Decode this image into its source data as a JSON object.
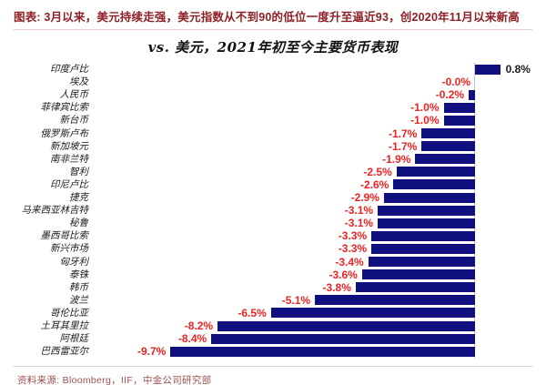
{
  "header": {
    "title": "图表: 3月以来，美元持续走强，美元指数从不到90的低位一度升至逼近93，创2020年11月以来新高",
    "accent_color": "#8E1F24"
  },
  "chart_data": {
    "type": "bar",
    "orientation": "horizontal",
    "title": "vs. 美元，2021年初至今主要货币表现",
    "categories": [
      "印度卢比",
      "埃及",
      "人民币",
      "菲律宾比索",
      "新台币",
      "俄罗斯卢布",
      "新加坡元",
      "南非兰特",
      "智利",
      "印尼卢比",
      "捷克",
      "马来西亚林吉特",
      "秘鲁",
      "墨西哥比索",
      "新兴市场",
      "匈牙利",
      "泰铢",
      "韩币",
      "波兰",
      "哥伦比亚",
      "土耳其里拉",
      "阿根廷",
      "巴西雷亚尔"
    ],
    "values": [
      0.8,
      -0.0,
      -0.2,
      -1.0,
      -1.0,
      -1.7,
      -1.7,
      -1.9,
      -2.5,
      -2.6,
      -2.9,
      -3.1,
      -3.1,
      -3.3,
      -3.3,
      -3.4,
      -3.6,
      -3.8,
      -5.1,
      -6.5,
      -8.2,
      -8.4,
      -9.7
    ],
    "value_labels": [
      "0.8%",
      "-0.0%",
      "-0.2%",
      "-1.0%",
      "-1.0%",
      "-1.7%",
      "-1.7%",
      "-1.9%",
      "-2.5%",
      "-2.6%",
      "-2.9%",
      "-3.1%",
      "-3.1%",
      "-3.3%",
      "-3.3%",
      "-3.4%",
      "-3.6%",
      "-3.8%",
      "-5.1%",
      "-6.5%",
      "-8.2%",
      "-8.4%",
      "-9.7%"
    ],
    "unit": "%",
    "xlim": [
      -10.5,
      2.3
    ],
    "grid": false,
    "legend": false,
    "bar_color": "#0F0F7D",
    "negative_label_color": "#EE2222",
    "positive_label_color": "#1A1A1A",
    "axis_color": "#C9C9C9"
  },
  "footer": {
    "source": "资料来源: Bloomberg，IIF，中金公司研究部"
  }
}
